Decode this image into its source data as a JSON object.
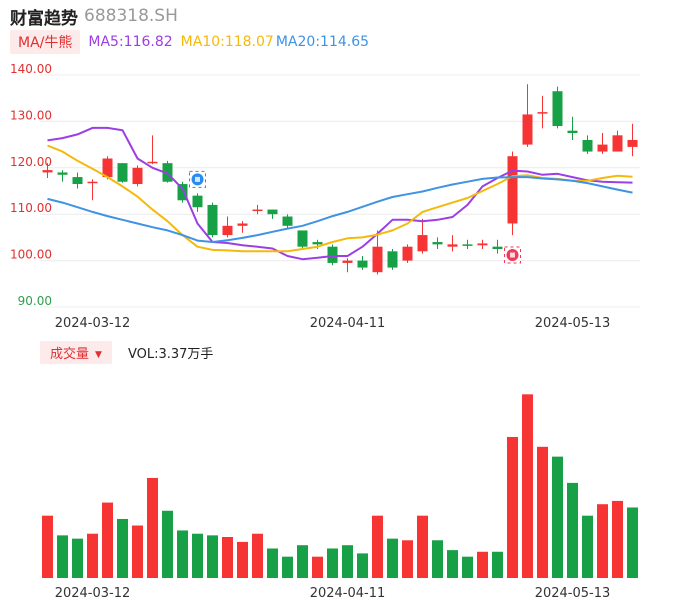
{
  "header": {
    "name": "财富趋势",
    "code": "688318.SH"
  },
  "ma": {
    "tag": "MA/牛熊",
    "ma5": "MA5:116.82",
    "ma10": "MA10:118.07",
    "ma20": "MA20:114.65"
  },
  "volume": {
    "tag": "成交量",
    "label": "VOL:3.37万手"
  },
  "colors": {
    "up": "#f73434",
    "down": "#18a046",
    "ma5": "#9b3fe4",
    "ma10": "#f5b90c",
    "ma20": "#3f93e5"
  },
  "icons": {
    "buy": "buy-marker-icon",
    "sell": "sell-marker-icon"
  },
  "chart_data": {
    "type": "candlestick",
    "y_axis_labels": [
      "140.00",
      "130.00",
      "120.00",
      "110.00",
      "100.00",
      "90.00"
    ],
    "ylim": [
      90,
      140
    ],
    "x_tick_labels": [
      "2024-03-12",
      "2024-04-11",
      "2024-05-13"
    ],
    "x_tick_indices": [
      3,
      20,
      35
    ],
    "candles": [
      {
        "o": 119.0,
        "c": 119.5,
        "h": 121.0,
        "l": 117.8
      },
      {
        "o": 119.0,
        "c": 118.5,
        "h": 119.5,
        "l": 117.0
      },
      {
        "o": 118.0,
        "c": 116.5,
        "h": 119.0,
        "l": 115.5
      },
      {
        "o": 117.0,
        "c": 117.0,
        "h": 117.5,
        "l": 113.0
      },
      {
        "o": 118.0,
        "c": 122.0,
        "h": 122.5,
        "l": 117.5
      },
      {
        "o": 121.0,
        "c": 117.0,
        "h": 121.0,
        "l": 116.8
      },
      {
        "o": 116.5,
        "c": 120.0,
        "h": 120.5,
        "l": 116.0
      },
      {
        "o": 121.0,
        "c": 121.3,
        "h": 127.0,
        "l": 120.8
      },
      {
        "o": 121.0,
        "c": 117.0,
        "h": 121.5,
        "l": 116.8
      },
      {
        "o": 116.5,
        "c": 113.0,
        "h": 117.0,
        "l": 112.5
      },
      {
        "o": 114.0,
        "c": 111.5,
        "h": 114.5,
        "l": 110.5
      },
      {
        "o": 112.0,
        "c": 105.5,
        "h": 112.5,
        "l": 105.0
      },
      {
        "o": 105.5,
        "c": 107.5,
        "h": 109.5,
        "l": 105.0
      },
      {
        "o": 107.5,
        "c": 108.0,
        "h": 108.5,
        "l": 106.0
      },
      {
        "o": 111.0,
        "c": 111.0,
        "h": 112.0,
        "l": 110.0
      },
      {
        "o": 111.0,
        "c": 110.0,
        "h": 111.0,
        "l": 109.0
      },
      {
        "o": 109.5,
        "c": 107.5,
        "h": 110.0,
        "l": 107.0
      },
      {
        "o": 106.5,
        "c": 103.0,
        "h": 106.5,
        "l": 102.5
      },
      {
        "o": 104.0,
        "c": 103.5,
        "h": 104.5,
        "l": 102.5
      },
      {
        "o": 103.0,
        "c": 99.5,
        "h": 103.5,
        "l": 99.0
      },
      {
        "o": 99.5,
        "c": 100.0,
        "h": 100.5,
        "l": 97.5
      },
      {
        "o": 100.0,
        "c": 98.5,
        "h": 101.0,
        "l": 98.0
      },
      {
        "o": 97.5,
        "c": 103.0,
        "h": 106.5,
        "l": 97.0
      },
      {
        "o": 102.0,
        "c": 98.5,
        "h": 102.5,
        "l": 98.0
      },
      {
        "o": 100.0,
        "c": 103.0,
        "h": 103.5,
        "l": 99.5
      },
      {
        "o": 102.0,
        "c": 105.5,
        "h": 109.0,
        "l": 101.5
      },
      {
        "o": 104.0,
        "c": 103.5,
        "h": 105.0,
        "l": 102.5
      },
      {
        "o": 103.0,
        "c": 103.5,
        "h": 105.5,
        "l": 102.0
      },
      {
        "o": 103.5,
        "c": 103.3,
        "h": 104.5,
        "l": 102.5
      },
      {
        "o": 103.3,
        "c": 103.7,
        "h": 104.5,
        "l": 102.5
      },
      {
        "o": 103.0,
        "c": 102.5,
        "h": 104.5,
        "l": 101.5
      },
      {
        "o": 108.0,
        "c": 122.5,
        "h": 123.5,
        "l": 105.5
      },
      {
        "o": 125.0,
        "c": 131.5,
        "h": 138.0,
        "l": 124.5
      },
      {
        "o": 132.0,
        "c": 132.0,
        "h": 135.5,
        "l": 128.5
      },
      {
        "o": 136.5,
        "c": 129.0,
        "h": 137.5,
        "l": 128.5
      },
      {
        "o": 128.0,
        "c": 127.5,
        "h": 131.0,
        "l": 126.0
      },
      {
        "o": 126.0,
        "c": 123.5,
        "h": 127.0,
        "l": 123.0
      },
      {
        "o": 123.5,
        "c": 125.0,
        "h": 127.5,
        "l": 123.0
      },
      {
        "o": 123.5,
        "c": 127.0,
        "h": 128.0,
        "l": 123.5
      },
      {
        "o": 124.5,
        "c": 126.0,
        "h": 129.5,
        "l": 122.5
      }
    ],
    "series": [
      {
        "name": "MA5",
        "values": [
          125.9,
          126.4,
          127.2,
          128.6,
          128.6,
          128.1,
          122.0,
          120.0,
          118.8,
          115.5,
          108.0,
          104.0,
          103.8,
          103.3,
          103.0,
          102.6,
          101.0,
          100.3,
          100.6,
          101.0,
          101.0,
          103.0,
          105.8,
          108.8,
          108.8,
          108.5,
          108.8,
          109.4,
          112.0,
          116.0,
          117.8,
          119.4,
          119.2,
          118.5,
          118.7,
          118.0,
          117.3,
          117.0,
          116.9,
          116.82
        ]
      },
      {
        "name": "MA10",
        "values": [
          124.8,
          123.5,
          121.5,
          119.8,
          118.0,
          116.0,
          113.8,
          111.0,
          108.5,
          105.5,
          103.0,
          102.3,
          102.2,
          102.0,
          102.0,
          102.0,
          102.0,
          102.5,
          103.0,
          104.0,
          104.8,
          105.0,
          105.6,
          106.5,
          108.0,
          110.5,
          111.5,
          112.5,
          113.5,
          115.0,
          116.5,
          118.2,
          118.4,
          117.8,
          117.6,
          117.2,
          117.2,
          117.8,
          118.3,
          118.07
        ]
      },
      {
        "name": "MA20",
        "values": [
          113.3,
          112.5,
          111.5,
          110.5,
          109.6,
          108.8,
          108.0,
          107.2,
          106.5,
          105.5,
          104.3,
          104.0,
          104.4,
          104.9,
          105.5,
          106.2,
          106.9,
          107.5,
          108.5,
          109.6,
          110.5,
          111.6,
          112.7,
          113.7,
          114.3,
          114.9,
          115.7,
          116.4,
          117.0,
          117.6,
          117.9,
          118.0,
          118.0,
          117.7,
          117.5,
          117.2,
          116.7,
          116.0,
          115.3,
          114.65
        ]
      }
    ],
    "volume": [
      {
        "v": 38,
        "up": true
      },
      {
        "v": 26,
        "up": false
      },
      {
        "v": 24,
        "up": false
      },
      {
        "v": 27,
        "up": true
      },
      {
        "v": 46,
        "up": true
      },
      {
        "v": 36,
        "up": false
      },
      {
        "v": 32,
        "up": true
      },
      {
        "v": 61,
        "up": true
      },
      {
        "v": 41,
        "up": false
      },
      {
        "v": 29,
        "up": false
      },
      {
        "v": 27,
        "up": false
      },
      {
        "v": 26,
        "up": false
      },
      {
        "v": 25,
        "up": true
      },
      {
        "v": 22,
        "up": true
      },
      {
        "v": 27,
        "up": true
      },
      {
        "v": 18,
        "up": false
      },
      {
        "v": 13,
        "up": false
      },
      {
        "v": 20,
        "up": false
      },
      {
        "v": 13,
        "up": true
      },
      {
        "v": 18,
        "up": false
      },
      {
        "v": 20,
        "up": false
      },
      {
        "v": 15,
        "up": false
      },
      {
        "v": 38,
        "up": true
      },
      {
        "v": 24,
        "up": false
      },
      {
        "v": 23,
        "up": true
      },
      {
        "v": 38,
        "up": true
      },
      {
        "v": 23,
        "up": false
      },
      {
        "v": 17,
        "up": false
      },
      {
        "v": 13,
        "up": false
      },
      {
        "v": 16,
        "up": true
      },
      {
        "v": 16,
        "up": false
      },
      {
        "v": 86,
        "up": true
      },
      {
        "v": 112,
        "up": true
      },
      {
        "v": 80,
        "up": true
      },
      {
        "v": 74,
        "up": false
      },
      {
        "v": 58,
        "up": false
      },
      {
        "v": 38,
        "up": false
      },
      {
        "v": 45,
        "up": true
      },
      {
        "v": 47,
        "up": true
      },
      {
        "v": 43,
        "up": false
      }
    ],
    "markers": [
      {
        "index": 10,
        "type": "buy",
        "price": 117.5
      },
      {
        "index": 31,
        "type": "sell",
        "price": 101.2
      }
    ]
  }
}
